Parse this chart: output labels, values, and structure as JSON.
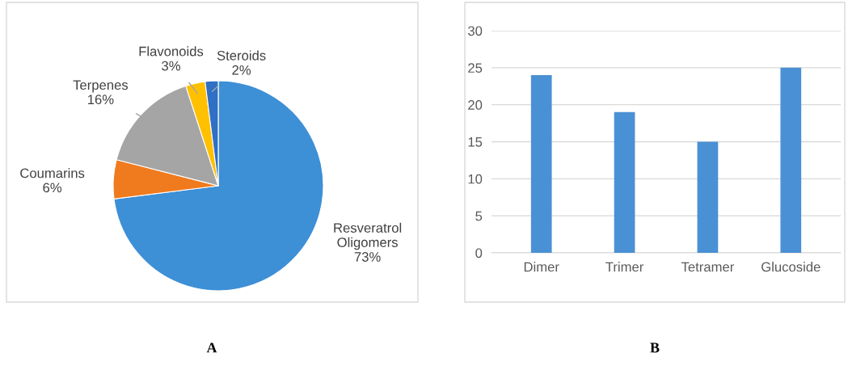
{
  "chart_data": [
    {
      "type": "pie",
      "categories": [
        "Resveratrol Oligomers",
        "Coumarins",
        "Terpenes",
        "Flavonoids",
        "Steroids"
      ],
      "values": [
        73,
        6,
        16,
        3,
        2
      ],
      "value_labels": [
        "73%",
        "6%",
        "16%",
        "3%",
        "2%"
      ],
      "colors": [
        "#3d8fd6",
        "#f07a1e",
        "#a5a5a5",
        "#ffc000",
        "#2f6fc4"
      ],
      "annotations": [
        "A"
      ]
    },
    {
      "type": "bar",
      "categories": [
        "Dimer",
        "Trimer",
        "Tetramer",
        "Glucoside"
      ],
      "values": [
        24,
        19,
        15,
        25
      ],
      "color": "#4a90d4",
      "ylim": [
        0,
        30
      ],
      "yticks": [
        0,
        5,
        10,
        15,
        20,
        25,
        30
      ],
      "grid": "y",
      "annotations": [
        "B"
      ]
    }
  ]
}
